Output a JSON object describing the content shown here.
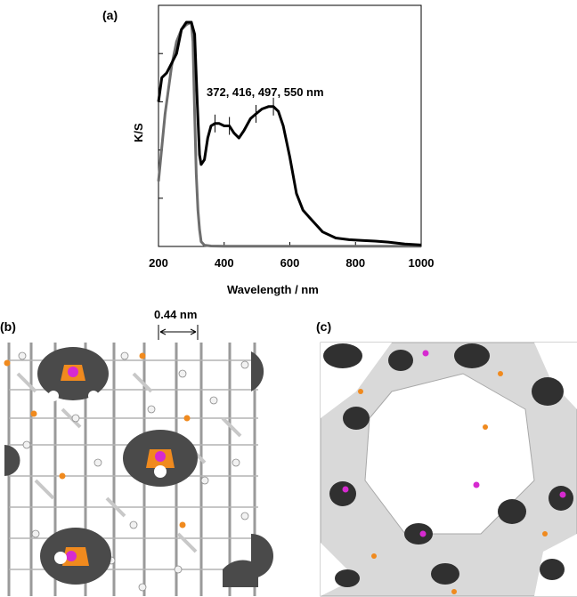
{
  "panels": {
    "a_label": "(a)",
    "b_label": "(b)",
    "c_label": "(c)"
  },
  "chart_data": {
    "type": "line",
    "title": "",
    "xlabel": "Wavelength / nm",
    "ylabel": "K/S",
    "xlim": [
      200,
      1000
    ],
    "ylim": [
      0,
      1
    ],
    "x_ticks": [
      200,
      400,
      600,
      800,
      1000
    ],
    "y_tick_labels": false,
    "grid": false,
    "legend": "none",
    "annotation": "372, 416, 497, 550 nm",
    "peak_markers": [
      372,
      416,
      497,
      550
    ],
    "series": [
      {
        "color": "#000000",
        "x": [
          200,
          210,
          225,
          240,
          255,
          270,
          285,
          300,
          310,
          318,
          325,
          330,
          340,
          350,
          360,
          372,
          385,
          400,
          416,
          430,
          445,
          460,
          480,
          497,
          515,
          535,
          550,
          565,
          580,
          600,
          620,
          640,
          660,
          680,
          700,
          740,
          780,
          820,
          860,
          900,
          950,
          1000
        ],
        "y": [
          0.6,
          0.7,
          0.72,
          0.76,
          0.8,
          0.9,
          0.93,
          0.93,
          0.88,
          0.6,
          0.38,
          0.34,
          0.36,
          0.45,
          0.5,
          0.51,
          0.51,
          0.5,
          0.5,
          0.47,
          0.45,
          0.48,
          0.53,
          0.55,
          0.57,
          0.58,
          0.58,
          0.56,
          0.5,
          0.37,
          0.22,
          0.15,
          0.12,
          0.09,
          0.06,
          0.035,
          0.028,
          0.025,
          0.022,
          0.018,
          0.01,
          0.006
        ]
      },
      {
        "color": "#6e6e6e",
        "x": [
          200,
          220,
          240,
          255,
          270,
          285,
          300,
          305,
          310,
          315,
          320,
          325,
          330,
          340,
          360,
          400,
          1000
        ],
        "y": [
          0.27,
          0.55,
          0.75,
          0.85,
          0.9,
          0.92,
          0.93,
          0.85,
          0.55,
          0.3,
          0.15,
          0.07,
          0.02,
          0.005,
          0.002,
          0.001,
          0.001
        ]
      }
    ]
  },
  "panel_b": {
    "scale_label": "0.44 nm",
    "colors": {
      "background": "#ffffff",
      "framework": "#8c8c8c",
      "highlight": "#505050",
      "orange": "#f08a1e",
      "magenta": "#d62ad0"
    }
  },
  "panel_c": {
    "colors": {
      "framework": "#dcdcdc",
      "dark": "#333333",
      "orange": "#f08a1e",
      "magenta": "#d62ad0"
    }
  }
}
